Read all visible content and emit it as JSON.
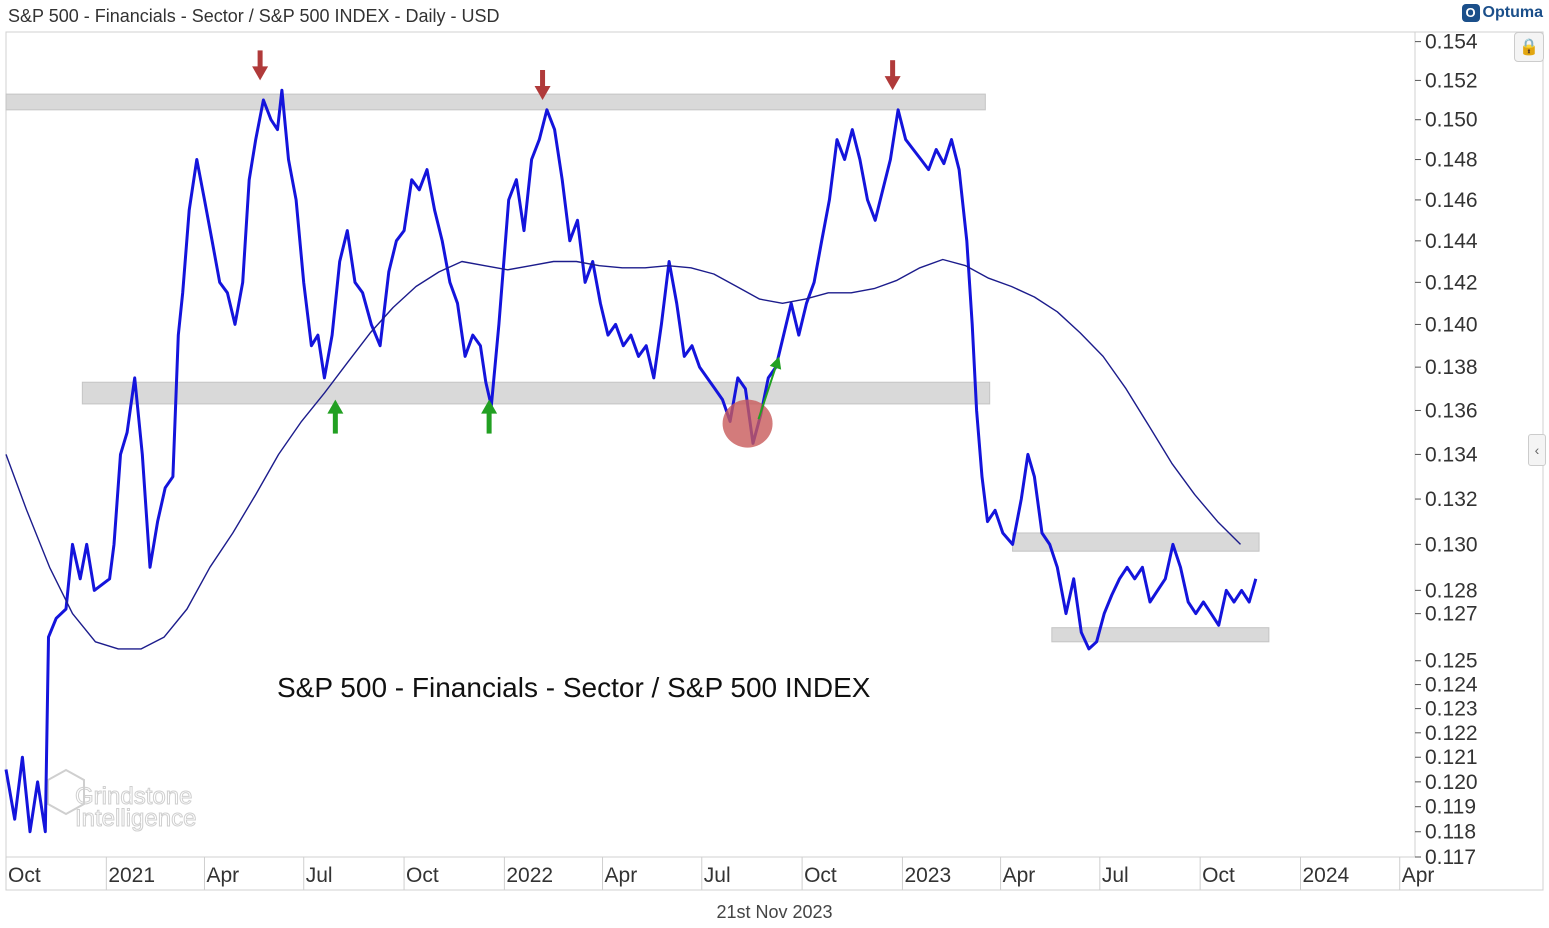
{
  "header": {
    "title": "S&P 500 - Financials - Sector / S&P 500 INDEX - Daily - USD",
    "brand": "Optuma"
  },
  "footer": {
    "date": "21st Nov 2023"
  },
  "colors": {
    "price_line": "#1414dc",
    "ma_line": "#1c1c8c",
    "zone": "#d9d9d9",
    "red_arrow": "#b03a3a",
    "green_arrow": "#22a022",
    "highlight_circle": "#c85a5a"
  },
  "icons": {
    "lock": "lock-icon",
    "collapse": "chevron-left-icon",
    "brand": "optuma-logo-icon"
  },
  "chart_data": {
    "type": "line",
    "title": "S&P 500 - Financials - Sector / S&P 500 INDEX - Daily - USD",
    "annotation": "S&P 500 - Financials - Sector / S&P 500 INDEX",
    "watermark": [
      "Grindstone",
      "Intelligence"
    ],
    "x_ticks": [
      "Oct",
      "2021",
      "Apr",
      "Jul",
      "Oct",
      "2022",
      "Apr",
      "Jul",
      "Oct",
      "2023",
      "Apr",
      "Jul",
      "Oct",
      "2024",
      "Apr"
    ],
    "y_ticks": [
      "0.154",
      "0.152",
      "0.150",
      "0.148",
      "0.146",
      "0.144",
      "0.142",
      "0.140",
      "0.138",
      "0.136",
      "0.134",
      "0.132",
      "0.130",
      "0.128",
      "0.127",
      "0.125",
      "0.124",
      "0.123",
      "0.122",
      "0.121",
      "0.120",
      "0.119",
      "0.118",
      "0.117"
    ],
    "x_range": [
      "2020-10-01",
      "2024-04-15"
    ],
    "y_range": [
      0.117,
      0.1545
    ],
    "y_scale": "log",
    "grid": false,
    "series": [
      {
        "kind": "price",
        "points": [
          [
            "2020-10-01",
            0.1205
          ],
          [
            "2020-10-09",
            0.1185
          ],
          [
            "2020-10-16",
            0.121
          ],
          [
            "2020-10-23",
            0.118
          ],
          [
            "2020-10-30",
            0.12
          ],
          [
            "2020-11-06",
            0.118
          ],
          [
            "2020-11-09",
            0.126
          ],
          [
            "2020-11-16",
            0.1268
          ],
          [
            "2020-11-25",
            0.1272
          ],
          [
            "2020-12-01",
            0.13
          ],
          [
            "2020-12-08",
            0.1285
          ],
          [
            "2020-12-14",
            0.13
          ],
          [
            "2020-12-21",
            0.128
          ],
          [
            "2021-01-04",
            0.1285
          ],
          [
            "2021-01-08",
            0.13
          ],
          [
            "2021-01-14",
            0.134
          ],
          [
            "2021-01-20",
            0.135
          ],
          [
            "2021-01-27",
            0.1375
          ],
          [
            "2021-02-03",
            0.134
          ],
          [
            "2021-02-10",
            0.129
          ],
          [
            "2021-02-17",
            0.131
          ],
          [
            "2021-02-24",
            0.1325
          ],
          [
            "2021-03-03",
            0.133
          ],
          [
            "2021-03-08",
            0.1395
          ],
          [
            "2021-03-12",
            0.1415
          ],
          [
            "2021-03-18",
            0.1455
          ],
          [
            "2021-03-25",
            0.148
          ],
          [
            "2021-04-01",
            0.146
          ],
          [
            "2021-04-08",
            0.144
          ],
          [
            "2021-04-15",
            0.142
          ],
          [
            "2021-04-22",
            0.1415
          ],
          [
            "2021-04-29",
            0.14
          ],
          [
            "2021-05-06",
            0.142
          ],
          [
            "2021-05-12",
            0.147
          ],
          [
            "2021-05-18",
            0.149
          ],
          [
            "2021-05-25",
            0.151
          ],
          [
            "2021-06-01",
            0.15
          ],
          [
            "2021-06-07",
            0.1495
          ],
          [
            "2021-06-11",
            0.1515
          ],
          [
            "2021-06-17",
            0.148
          ],
          [
            "2021-06-24",
            0.146
          ],
          [
            "2021-07-01",
            0.142
          ],
          [
            "2021-07-08",
            0.139
          ],
          [
            "2021-07-14",
            0.1395
          ],
          [
            "2021-07-20",
            0.1375
          ],
          [
            "2021-07-27",
            0.1395
          ],
          [
            "2021-08-03",
            0.143
          ],
          [
            "2021-08-10",
            0.1445
          ],
          [
            "2021-08-17",
            0.142
          ],
          [
            "2021-08-24",
            0.1415
          ],
          [
            "2021-09-01",
            0.14
          ],
          [
            "2021-09-09",
            0.139
          ],
          [
            "2021-09-17",
            0.1425
          ],
          [
            "2021-09-24",
            0.144
          ],
          [
            "2021-10-01",
            0.1445
          ],
          [
            "2021-10-08",
            0.147
          ],
          [
            "2021-10-15",
            0.1465
          ],
          [
            "2021-10-22",
            0.1475
          ],
          [
            "2021-10-29",
            0.1455
          ],
          [
            "2021-11-05",
            0.144
          ],
          [
            "2021-11-12",
            0.142
          ],
          [
            "2021-11-19",
            0.141
          ],
          [
            "2021-11-26",
            0.1385
          ],
          [
            "2021-12-03",
            0.1395
          ],
          [
            "2021-12-10",
            0.139
          ],
          [
            "2021-12-15",
            0.1373
          ],
          [
            "2021-12-20",
            0.1362
          ],
          [
            "2021-12-27",
            0.14
          ],
          [
            "2022-01-05",
            0.146
          ],
          [
            "2022-01-12",
            0.147
          ],
          [
            "2022-01-19",
            0.1445
          ],
          [
            "2022-01-26",
            0.148
          ],
          [
            "2022-02-02",
            0.149
          ],
          [
            "2022-02-09",
            0.1505
          ],
          [
            "2022-02-16",
            0.1495
          ],
          [
            "2022-02-23",
            0.147
          ],
          [
            "2022-03-02",
            0.144
          ],
          [
            "2022-03-09",
            0.145
          ],
          [
            "2022-03-16",
            0.142
          ],
          [
            "2022-03-23",
            0.143
          ],
          [
            "2022-03-30",
            0.141
          ],
          [
            "2022-04-06",
            0.1395
          ],
          [
            "2022-04-13",
            0.14
          ],
          [
            "2022-04-20",
            0.139
          ],
          [
            "2022-04-27",
            0.1395
          ],
          [
            "2022-05-04",
            0.1385
          ],
          [
            "2022-05-11",
            0.139
          ],
          [
            "2022-05-18",
            0.1375
          ],
          [
            "2022-05-25",
            0.14
          ],
          [
            "2022-06-01",
            0.143
          ],
          [
            "2022-06-08",
            0.141
          ],
          [
            "2022-06-15",
            0.1385
          ],
          [
            "2022-06-22",
            0.139
          ],
          [
            "2022-06-29",
            0.138
          ],
          [
            "2022-07-06",
            0.1375
          ],
          [
            "2022-07-13",
            0.137
          ],
          [
            "2022-07-20",
            0.1365
          ],
          [
            "2022-07-27",
            0.1355
          ],
          [
            "2022-08-03",
            0.1375
          ],
          [
            "2022-08-10",
            0.137
          ],
          [
            "2022-08-17",
            0.1345
          ],
          [
            "2022-08-24",
            0.1358
          ],
          [
            "2022-08-31",
            0.1375
          ],
          [
            "2022-09-07",
            0.138
          ],
          [
            "2022-09-14",
            0.1395
          ],
          [
            "2022-09-21",
            0.141
          ],
          [
            "2022-09-28",
            0.1395
          ],
          [
            "2022-10-05",
            0.141
          ],
          [
            "2022-10-12",
            0.142
          ],
          [
            "2022-10-19",
            0.144
          ],
          [
            "2022-10-26",
            0.146
          ],
          [
            "2022-11-02",
            0.149
          ],
          [
            "2022-11-09",
            0.148
          ],
          [
            "2022-11-16",
            0.1495
          ],
          [
            "2022-11-23",
            0.148
          ],
          [
            "2022-11-30",
            0.146
          ],
          [
            "2022-12-07",
            0.145
          ],
          [
            "2022-12-14",
            0.1465
          ],
          [
            "2022-12-21",
            0.148
          ],
          [
            "2022-12-28",
            0.1505
          ],
          [
            "2023-01-04",
            0.149
          ],
          [
            "2023-01-11",
            0.1485
          ],
          [
            "2023-01-18",
            0.148
          ],
          [
            "2023-01-25",
            0.1475
          ],
          [
            "2023-02-01",
            0.1485
          ],
          [
            "2023-02-08",
            0.1478
          ],
          [
            "2023-02-15",
            0.149
          ],
          [
            "2023-02-22",
            0.1475
          ],
          [
            "2023-03-01",
            0.144
          ],
          [
            "2023-03-06",
            0.14
          ],
          [
            "2023-03-10",
            0.136
          ],
          [
            "2023-03-15",
            0.133
          ],
          [
            "2023-03-20",
            0.131
          ],
          [
            "2023-03-27",
            0.1315
          ],
          [
            "2023-04-03",
            0.1305
          ],
          [
            "2023-04-12",
            0.13
          ],
          [
            "2023-04-20",
            0.132
          ],
          [
            "2023-04-26",
            0.134
          ],
          [
            "2023-05-02",
            0.133
          ],
          [
            "2023-05-09",
            0.1305
          ],
          [
            "2023-05-16",
            0.13
          ],
          [
            "2023-05-23",
            0.129
          ],
          [
            "2023-05-31",
            0.127
          ],
          [
            "2023-06-07",
            0.1285
          ],
          [
            "2023-06-14",
            0.1262
          ],
          [
            "2023-06-21",
            0.1255
          ],
          [
            "2023-06-28",
            0.1258
          ],
          [
            "2023-07-05",
            0.127
          ],
          [
            "2023-07-12",
            0.1278
          ],
          [
            "2023-07-19",
            0.1285
          ],
          [
            "2023-07-26",
            0.129
          ],
          [
            "2023-08-02",
            0.1285
          ],
          [
            "2023-08-09",
            0.129
          ],
          [
            "2023-08-16",
            0.1275
          ],
          [
            "2023-08-23",
            0.128
          ],
          [
            "2023-08-30",
            0.1285
          ],
          [
            "2023-09-06",
            0.13
          ],
          [
            "2023-09-13",
            0.129
          ],
          [
            "2023-09-20",
            0.1275
          ],
          [
            "2023-09-27",
            0.127
          ],
          [
            "2023-10-04",
            0.1275
          ],
          [
            "2023-10-11",
            0.127
          ],
          [
            "2023-10-18",
            0.1265
          ],
          [
            "2023-10-25",
            0.128
          ],
          [
            "2023-11-01",
            0.1275
          ],
          [
            "2023-11-08",
            0.128
          ],
          [
            "2023-11-15",
            0.1275
          ],
          [
            "2023-11-21",
            0.1285
          ]
        ]
      },
      {
        "kind": "moving-average",
        "points": [
          [
            "2020-10-01",
            0.134
          ],
          [
            "2020-10-20",
            0.1315
          ],
          [
            "2020-11-10",
            0.129
          ],
          [
            "2020-12-01",
            0.127
          ],
          [
            "2020-12-22",
            0.1258
          ],
          [
            "2021-01-12",
            0.1255
          ],
          [
            "2021-02-02",
            0.1255
          ],
          [
            "2021-02-23",
            0.126
          ],
          [
            "2021-03-16",
            0.1272
          ],
          [
            "2021-04-06",
            0.129
          ],
          [
            "2021-04-27",
            0.1305
          ],
          [
            "2021-05-18",
            0.1322
          ],
          [
            "2021-06-08",
            0.134
          ],
          [
            "2021-06-29",
            0.1355
          ],
          [
            "2021-07-20",
            0.1368
          ],
          [
            "2021-08-10",
            0.1382
          ],
          [
            "2021-08-31",
            0.1396
          ],
          [
            "2021-09-21",
            0.1408
          ],
          [
            "2021-10-12",
            0.1418
          ],
          [
            "2021-11-02",
            0.1425
          ],
          [
            "2021-11-23",
            0.143
          ],
          [
            "2021-12-14",
            0.1428
          ],
          [
            "2022-01-04",
            0.1426
          ],
          [
            "2022-01-25",
            0.1428
          ],
          [
            "2022-02-15",
            0.143
          ],
          [
            "2022-03-08",
            0.143
          ],
          [
            "2022-03-29",
            0.1428
          ],
          [
            "2022-04-19",
            0.1427
          ],
          [
            "2022-05-10",
            0.1427
          ],
          [
            "2022-05-31",
            0.1428
          ],
          [
            "2022-06-21",
            0.1427
          ],
          [
            "2022-07-12",
            0.1424
          ],
          [
            "2022-08-02",
            0.1418
          ],
          [
            "2022-08-23",
            0.1412
          ],
          [
            "2022-09-13",
            0.141
          ],
          [
            "2022-10-04",
            0.1412
          ],
          [
            "2022-10-25",
            0.1415
          ],
          [
            "2022-11-15",
            0.1415
          ],
          [
            "2022-12-06",
            0.1417
          ],
          [
            "2022-12-27",
            0.1421
          ],
          [
            "2023-01-17",
            0.1427
          ],
          [
            "2023-02-07",
            0.1431
          ],
          [
            "2023-02-28",
            0.1428
          ],
          [
            "2023-03-21",
            0.1422
          ],
          [
            "2023-04-11",
            0.1418
          ],
          [
            "2023-05-02",
            0.1413
          ],
          [
            "2023-05-23",
            0.1406
          ],
          [
            "2023-06-13",
            0.1396
          ],
          [
            "2023-07-04",
            0.1385
          ],
          [
            "2023-07-25",
            0.137
          ],
          [
            "2023-08-15",
            0.1353
          ],
          [
            "2023-09-05",
            0.1336
          ],
          [
            "2023-09-26",
            0.1322
          ],
          [
            "2023-10-17",
            0.131
          ],
          [
            "2023-11-07",
            0.13
          ]
        ]
      }
    ],
    "zones": [
      {
        "from": "2020-10-01",
        "to": "2023-03-18",
        "y_low": 0.1505,
        "y_high": 0.1513
      },
      {
        "from": "2020-12-10",
        "to": "2023-03-22",
        "y_low": 0.1363,
        "y_high": 0.1373
      },
      {
        "from": "2023-04-12",
        "to": "2023-11-24",
        "y_low": 0.1297,
        "y_high": 0.1305
      },
      {
        "from": "2023-05-18",
        "to": "2023-12-03",
        "y_low": 0.1258,
        "y_high": 0.1264
      }
    ],
    "markers": [
      {
        "type": "down-arrow",
        "date": "2021-05-22",
        "y": 0.152
      },
      {
        "type": "down-arrow",
        "date": "2022-02-05",
        "y": 0.151
      },
      {
        "type": "down-arrow",
        "date": "2022-12-23",
        "y": 0.1515
      },
      {
        "type": "up-arrow",
        "date": "2021-07-30",
        "y": 0.1365
      },
      {
        "type": "up-arrow",
        "date": "2021-12-18",
        "y": 0.1365
      },
      {
        "type": "circle",
        "date": "2022-08-12",
        "y": 0.1354
      },
      {
        "type": "diagonal-arrow",
        "from_date": "2022-08-22",
        "from_y": 0.1356,
        "to_date": "2022-09-10",
        "to_y": 0.1385
      }
    ]
  }
}
